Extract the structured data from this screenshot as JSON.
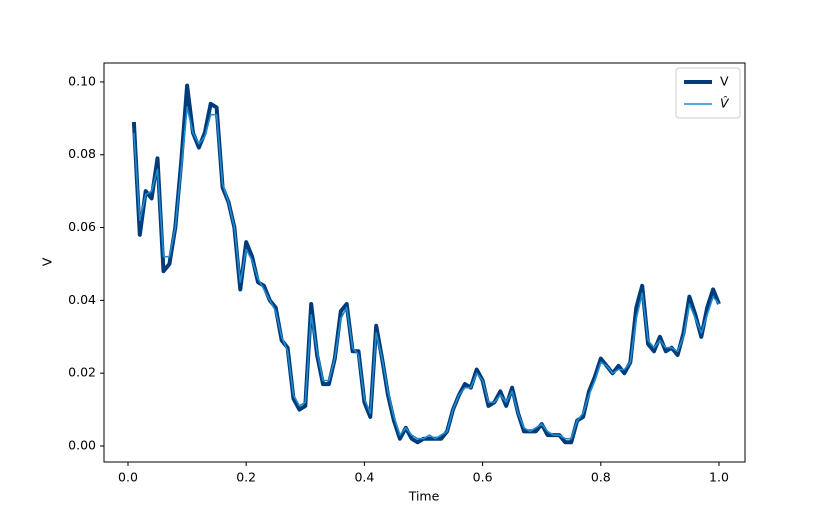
{
  "chart_data": {
    "type": "line",
    "xlabel": "Time",
    "ylabel": "V",
    "x": [
      0.01,
      0.02,
      0.03,
      0.04,
      0.05,
      0.06,
      0.07,
      0.08,
      0.09,
      0.1,
      0.11,
      0.12,
      0.13,
      0.14,
      0.15,
      0.16,
      0.17,
      0.18,
      0.19,
      0.2,
      0.21,
      0.22,
      0.23,
      0.24,
      0.25,
      0.26,
      0.27,
      0.28,
      0.29,
      0.3,
      0.31,
      0.32,
      0.33,
      0.34,
      0.35,
      0.36,
      0.37,
      0.38,
      0.39,
      0.4,
      0.41,
      0.42,
      0.43,
      0.44,
      0.45,
      0.46,
      0.47,
      0.48,
      0.49,
      0.5,
      0.51,
      0.52,
      0.53,
      0.54,
      0.55,
      0.56,
      0.57,
      0.58,
      0.59,
      0.6,
      0.61,
      0.62,
      0.63,
      0.64,
      0.65,
      0.66,
      0.67,
      0.68,
      0.69,
      0.7,
      0.71,
      0.72,
      0.73,
      0.74,
      0.75,
      0.76,
      0.77,
      0.78,
      0.79,
      0.8,
      0.81,
      0.82,
      0.83,
      0.84,
      0.85,
      0.86,
      0.87,
      0.88,
      0.89,
      0.9,
      0.91,
      0.92,
      0.93,
      0.94,
      0.95,
      0.96,
      0.97,
      0.98,
      0.99,
      1.0
    ],
    "series": [
      {
        "name": "V",
        "color": "#003b7a",
        "width": 4,
        "values": [
          0.089,
          0.058,
          0.07,
          0.068,
          0.079,
          0.048,
          0.05,
          0.06,
          0.078,
          0.099,
          0.086,
          0.082,
          0.086,
          0.094,
          0.093,
          0.071,
          0.067,
          0.06,
          0.043,
          0.056,
          0.052,
          0.045,
          0.044,
          0.04,
          0.038,
          0.029,
          0.027,
          0.013,
          0.01,
          0.011,
          0.039,
          0.025,
          0.017,
          0.017,
          0.024,
          0.037,
          0.039,
          0.026,
          0.026,
          0.012,
          0.008,
          0.033,
          0.024,
          0.014,
          0.007,
          0.002,
          0.005,
          0.002,
          0.001,
          0.002,
          0.002,
          0.002,
          0.002,
          0.004,
          0.01,
          0.014,
          0.017,
          0.016,
          0.021,
          0.018,
          0.011,
          0.012,
          0.015,
          0.011,
          0.016,
          0.009,
          0.004,
          0.004,
          0.004,
          0.006,
          0.003,
          0.003,
          0.003,
          0.001,
          0.001,
          0.007,
          0.008,
          0.015,
          0.019,
          0.024,
          0.022,
          0.02,
          0.022,
          0.02,
          0.023,
          0.038,
          0.044,
          0.028,
          0.026,
          0.03,
          0.026,
          0.027,
          0.025,
          0.031,
          0.041,
          0.036,
          0.03,
          0.038,
          0.043,
          0.039
        ]
      },
      {
        "name": "V̂",
        "color": "#1f8ccf",
        "width": 1.6,
        "values": [
          0.086,
          0.062,
          0.069,
          0.07,
          0.076,
          0.052,
          0.052,
          0.06,
          0.076,
          0.093,
          0.086,
          0.083,
          0.085,
          0.091,
          0.091,
          0.072,
          0.067,
          0.06,
          0.045,
          0.054,
          0.051,
          0.046,
          0.043,
          0.04,
          0.037,
          0.03,
          0.026,
          0.014,
          0.011,
          0.012,
          0.036,
          0.026,
          0.018,
          0.018,
          0.024,
          0.035,
          0.038,
          0.027,
          0.025,
          0.013,
          0.009,
          0.031,
          0.024,
          0.015,
          0.008,
          0.003,
          0.005,
          0.003,
          0.002,
          0.002,
          0.003,
          0.002,
          0.003,
          0.004,
          0.01,
          0.014,
          0.016,
          0.016,
          0.02,
          0.018,
          0.012,
          0.012,
          0.014,
          0.012,
          0.015,
          0.009,
          0.005,
          0.004,
          0.005,
          0.006,
          0.004,
          0.003,
          0.003,
          0.002,
          0.002,
          0.007,
          0.009,
          0.014,
          0.018,
          0.023,
          0.022,
          0.02,
          0.021,
          0.021,
          0.023,
          0.035,
          0.042,
          0.029,
          0.027,
          0.029,
          0.027,
          0.027,
          0.026,
          0.03,
          0.039,
          0.035,
          0.031,
          0.036,
          0.041,
          0.039
        ]
      }
    ],
    "xlim": [
      -0.0406,
      1.044
    ],
    "ylim": [
      -0.0044,
      0.1052
    ],
    "xticks": [
      {
        "value": 0,
        "label": "0.0"
      },
      {
        "value": 0.2,
        "label": "0.2"
      },
      {
        "value": 0.4,
        "label": "0.4"
      },
      {
        "value": 0.6,
        "label": "0.6"
      },
      {
        "value": 0.8,
        "label": "0.8"
      },
      {
        "value": 1,
        "label": "1.0"
      }
    ],
    "yticks": [
      {
        "value": 0,
        "label": "0.00"
      },
      {
        "value": 0.02,
        "label": "0.02"
      },
      {
        "value": 0.04,
        "label": "0.04"
      },
      {
        "value": 0.06,
        "label": "0.06"
      },
      {
        "value": 0.08,
        "label": "0.08"
      },
      {
        "value": 0.1,
        "label": "0.10"
      }
    ],
    "legend": "upper right"
  }
}
